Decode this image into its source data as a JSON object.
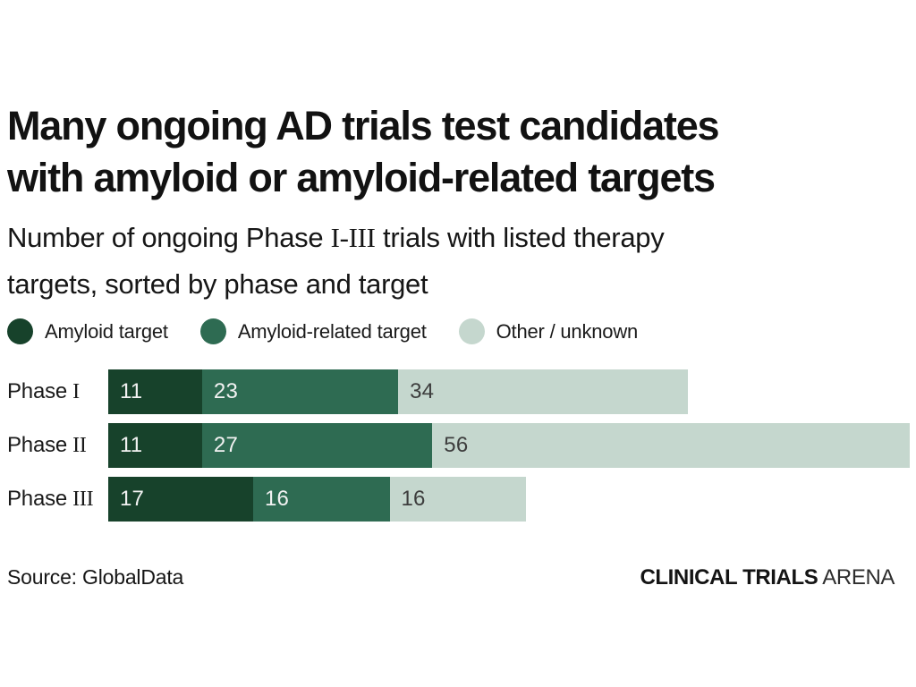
{
  "page": {
    "title_line1": "Many ongoing AD trials test candidates",
    "title_line2": "with amyloid or amyloid-related targets",
    "subtitle": {
      "line1_pre": "Number of ongoing Phase ",
      "line1_numeral": "I-III",
      "line1_post": " trials with listed therapy",
      "line2": "targets, sorted by phase and target"
    },
    "source": "Source: GlobalData",
    "brand": {
      "bold": "CLINICAL TRIALS",
      "light": "ARENA"
    }
  },
  "colors": {
    "amyloid_target": "#17422b",
    "amyloid_related_target": "#2e6b52",
    "other_unknown": "#c5d7ce",
    "value_text_light": "#f2f2f2",
    "value_text_dark": "#3d3d3d",
    "background": "#ffffff"
  },
  "legend": {
    "items": [
      {
        "label": "Amyloid target",
        "color": "#17422b"
      },
      {
        "label": "Amyloid-related target",
        "color": "#2e6b52"
      },
      {
        "label": "Other / unknown",
        "color": "#c5d7ce"
      }
    ]
  },
  "chart_data": {
    "type": "bar",
    "orientation": "horizontal",
    "stacked": true,
    "title": "Many ongoing AD trials test candidates with amyloid or amyloid-related targets",
    "subtitle": "Number of ongoing Phase I-III trials with listed therapy targets, sorted by phase and target",
    "categories": [
      "Phase I",
      "Phase II",
      "Phase III"
    ],
    "series": [
      {
        "name": "Amyloid target",
        "color": "#17422b",
        "label_color": "#f2f2f2",
        "values": [
          11,
          11,
          17
        ]
      },
      {
        "name": "Amyloid-related target",
        "color": "#2e6b52",
        "label_color": "#f2f2f2",
        "values": [
          23,
          27,
          16
        ]
      },
      {
        "name": "Other / unknown",
        "color": "#c5d7ce",
        "label_color": "#3d3d3d",
        "values": [
          34,
          56,
          16
        ]
      }
    ],
    "totals": [
      68,
      94,
      49
    ],
    "xlim": [
      0,
      94
    ],
    "grid": false,
    "legend_position": "top",
    "data_labels": true,
    "source": "GlobalData"
  },
  "rows": [
    {
      "label_text": "Phase",
      "label_numeral": "I"
    },
    {
      "label_text": "Phase",
      "label_numeral": "II"
    },
    {
      "label_text": "Phase",
      "label_numeral": "III"
    }
  ]
}
